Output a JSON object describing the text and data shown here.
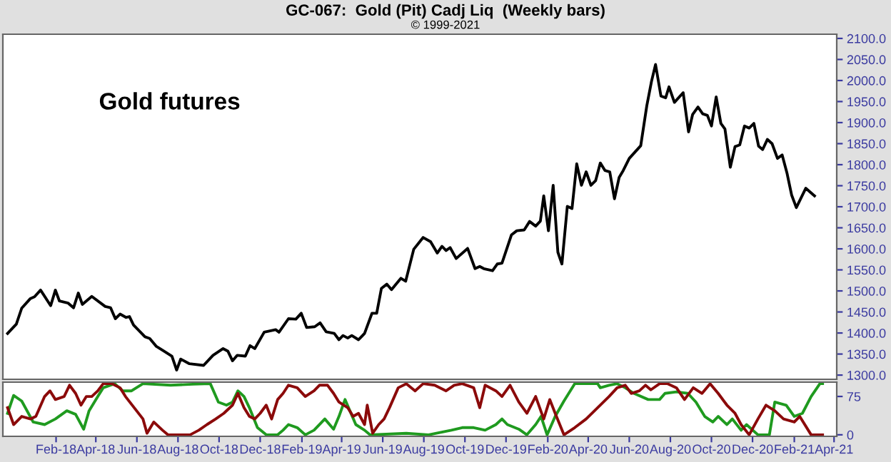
{
  "chart_data": [
    {
      "type": "line",
      "title": "GC-067:  Gold (Pit) Cadj Liq  (Weekly bars)",
      "annotations": [
        "© 1999-2021",
        "Gold futures"
      ],
      "tick_labels": "y",
      "marker": "none",
      "line_style": "solid",
      "xlim": [
        "2017-11-14",
        "2021-04-05"
      ],
      "ylim": [
        1290,
        2110
      ],
      "yticks": [
        {
          "value": 1300,
          "label": "1300.0"
        },
        {
          "value": 1350,
          "label": "1350.0"
        },
        {
          "value": 1400,
          "label": "1400.0"
        },
        {
          "value": 1450,
          "label": "1450.0"
        },
        {
          "value": 1500,
          "label": "1500.0"
        },
        {
          "value": 1550,
          "label": "1550.0"
        },
        {
          "value": 1600,
          "label": "1600.0"
        },
        {
          "value": 1650,
          "label": "1650.0"
        },
        {
          "value": 1700,
          "label": "1700.0"
        },
        {
          "value": 1750,
          "label": "1750.0"
        },
        {
          "value": 1800,
          "label": "1800.0"
        },
        {
          "value": 1850,
          "label": "1850.0"
        },
        {
          "value": 1900,
          "label": "1900.0"
        },
        {
          "value": 1950,
          "label": "1950.0"
        },
        {
          "value": 2000,
          "label": "2000.0"
        },
        {
          "value": 2050,
          "label": "2050.0"
        },
        {
          "value": 2100,
          "label": "2100.0"
        }
      ],
      "series": [
        {
          "color": "#000000",
          "x": [
            "2017-11-21",
            "2017-12-04",
            "2017-12-12",
            "2017-12-25",
            "2017-12-31",
            "2018-01-09",
            "2018-01-24",
            "2018-01-31",
            "2018-02-06",
            "2018-02-19",
            "2018-02-27",
            "2018-03-06",
            "2018-03-12",
            "2018-03-26",
            "2018-04-15",
            "2018-04-23",
            "2018-04-30",
            "2018-05-07",
            "2018-05-16",
            "2018-05-21",
            "2018-05-27",
            "2018-06-13",
            "2018-06-20",
            "2018-06-30",
            "2018-07-11",
            "2018-07-23",
            "2018-07-30",
            "2018-08-05",
            "2018-08-18",
            "2018-09-08",
            "2018-09-22",
            "2018-10-07",
            "2018-10-14",
            "2018-10-21",
            "2018-10-28",
            "2018-11-09",
            "2018-11-16",
            "2018-11-23",
            "2018-12-07",
            "2018-12-24",
            "2018-12-29",
            "2019-01-12",
            "2019-01-23",
            "2019-01-31",
            "2019-02-08",
            "2019-02-20",
            "2019-02-28",
            "2019-03-09",
            "2019-03-21",
            "2019-03-28",
            "2019-04-03",
            "2019-04-10",
            "2019-04-16",
            "2019-04-26",
            "2019-05-05",
            "2019-05-16",
            "2019-05-23",
            "2019-05-30",
            "2019-06-07",
            "2019-06-14",
            "2019-06-28",
            "2019-07-05",
            "2019-07-17",
            "2019-07-31",
            "2019-08-11",
            "2019-08-21",
            "2019-08-28",
            "2019-09-03",
            "2019-09-09",
            "2019-09-18",
            "2019-10-05",
            "2019-10-16",
            "2019-10-23",
            "2019-10-29",
            "2019-11-11",
            "2019-11-18",
            "2019-11-25",
            "2019-12-09",
            "2019-12-17",
            "2019-12-28",
            "2020-01-05",
            "2020-01-14",
            "2020-01-21",
            "2020-01-26",
            "2020-02-02",
            "2020-02-09",
            "2020-02-16",
            "2020-02-22",
            "2020-03-01",
            "2020-03-08",
            "2020-03-15",
            "2020-03-22",
            "2020-03-29",
            "2020-04-05",
            "2020-04-12",
            "2020-04-19",
            "2020-04-26",
            "2020-05-03",
            "2020-05-10",
            "2020-05-17",
            "2020-05-23",
            "2020-06-01",
            "2020-06-18",
            "2020-06-27",
            "2020-07-04",
            "2020-07-10",
            "2020-07-18",
            "2020-07-25",
            "2020-07-30",
            "2020-08-07",
            "2020-08-20",
            "2020-08-28",
            "2020-09-03",
            "2020-09-11",
            "2020-09-18",
            "2020-09-25",
            "2020-10-01",
            "2020-10-08",
            "2020-10-15",
            "2020-10-21",
            "2020-10-29",
            "2020-11-05",
            "2020-11-12",
            "2020-11-19",
            "2020-11-26",
            "2020-12-03",
            "2020-12-10",
            "2020-12-16",
            "2020-12-23",
            "2020-12-30",
            "2021-01-07",
            "2021-01-14",
            "2021-01-21",
            "2021-01-28",
            "2021-02-04",
            "2021-02-18",
            "2021-03-03"
          ],
          "values": [
            1399,
            1421,
            1459,
            1482,
            1486,
            1502,
            1465,
            1502,
            1476,
            1471,
            1460,
            1495,
            1468,
            1487,
            1463,
            1460,
            1434,
            1445,
            1437,
            1439,
            1419,
            1391,
            1387,
            1368,
            1357,
            1345,
            1312,
            1338,
            1327,
            1323,
            1347,
            1363,
            1357,
            1334,
            1347,
            1345,
            1370,
            1363,
            1402,
            1408,
            1402,
            1434,
            1433,
            1447,
            1413,
            1415,
            1424,
            1403,
            1399,
            1384,
            1394,
            1388,
            1394,
            1384,
            1399,
            1447,
            1447,
            1506,
            1516,
            1503,
            1530,
            1523,
            1599,
            1627,
            1617,
            1590,
            1606,
            1596,
            1603,
            1577,
            1601,
            1553,
            1558,
            1553,
            1548,
            1564,
            1566,
            1633,
            1643,
            1645,
            1665,
            1654,
            1666,
            1726,
            1643,
            1751,
            1592,
            1564,
            1701,
            1696,
            1802,
            1751,
            1783,
            1751,
            1762,
            1804,
            1786,
            1783,
            1719,
            1770,
            1786,
            1815,
            1845,
            1940,
            1998,
            2038,
            1963,
            1959,
            1985,
            1948,
            1971,
            1878,
            1919,
            1937,
            1921,
            1917,
            1892,
            1961,
            1898,
            1885,
            1794,
            1843,
            1847,
            1892,
            1887,
            1898,
            1844,
            1836,
            1860,
            1850,
            1815,
            1823,
            1781,
            1728,
            1698,
            1744,
            1726
          ]
        }
      ]
    },
    {
      "type": "line",
      "marker": "none",
      "line_style": "solid",
      "xlim": [
        "2017-11-14",
        "2021-04-05"
      ],
      "ylim": [
        -3,
        103
      ],
      "xticks": [
        {
          "value": "2018-02-01",
          "label": "Feb-18"
        },
        {
          "value": "2018-04-01",
          "label": "Apr-18"
        },
        {
          "value": "2018-06-01",
          "label": "Jun-18"
        },
        {
          "value": "2018-08-01",
          "label": "Aug-18"
        },
        {
          "value": "2018-10-01",
          "label": "Oct-18"
        },
        {
          "value": "2018-12-01",
          "label": "Dec-18"
        },
        {
          "value": "2019-02-01",
          "label": "Feb-19"
        },
        {
          "value": "2019-04-01",
          "label": "Apr-19"
        },
        {
          "value": "2019-06-01",
          "label": "Jun-19"
        },
        {
          "value": "2019-08-01",
          "label": "Aug-19"
        },
        {
          "value": "2019-10-01",
          "label": "Oct-19"
        },
        {
          "value": "2019-12-01",
          "label": "Dec-19"
        },
        {
          "value": "2020-02-01",
          "label": "Feb-20"
        },
        {
          "value": "2020-04-01",
          "label": "Apr-20"
        },
        {
          "value": "2020-06-01",
          "label": "Jun-20"
        },
        {
          "value": "2020-08-01",
          "label": "Aug-20"
        },
        {
          "value": "2020-10-01",
          "label": "Oct-20"
        },
        {
          "value": "2020-12-01",
          "label": "Dec-20"
        },
        {
          "value": "2021-02-01",
          "label": "Feb-21"
        },
        {
          "value": "2021-04-01",
          "label": "Apr-21"
        }
      ],
      "yticks": [
        0,
        75
      ],
      "series": [
        {
          "color": "#1f9a1f",
          "x": [
            "2017-11-21",
            "2017-11-30",
            "2017-12-12",
            "2017-12-29",
            "2018-01-15",
            "2018-01-31",
            "2018-02-17",
            "2018-03-02",
            "2018-03-14",
            "2018-03-22",
            "2018-04-04",
            "2018-04-12",
            "2018-04-29",
            "2018-05-11",
            "2018-05-24",
            "2018-06-10",
            "2018-07-21",
            "2018-08-23",
            "2018-09-18",
            "2018-09-30",
            "2018-10-12",
            "2018-10-21",
            "2018-10-29",
            "2018-11-07",
            "2018-11-15",
            "2018-11-27",
            "2018-12-10",
            "2018-12-27",
            "2019-01-04",
            "2019-01-12",
            "2019-01-25",
            "2019-02-06",
            "2019-02-19",
            "2019-03-07",
            "2019-03-20",
            "2019-03-28",
            "2019-04-06",
            "2019-04-22",
            "2019-05-05",
            "2019-05-13",
            "2019-07-06",
            "2019-08-08",
            "2019-09-11",
            "2019-09-27",
            "2019-10-14",
            "2019-10-31",
            "2019-11-16",
            "2019-11-25",
            "2019-12-03",
            "2019-12-20",
            "2020-01-01",
            "2020-01-14",
            "2020-01-22",
            "2020-01-31",
            "2020-02-12",
            "2020-02-25",
            "2020-03-12",
            "2020-04-15",
            "2020-04-19",
            "2020-05-02",
            "2020-05-14",
            "2020-05-26",
            "2020-06-08",
            "2020-06-29",
            "2020-07-16",
            "2020-07-24",
            "2020-08-10",
            "2020-08-27",
            "2020-09-08",
            "2020-09-21",
            "2020-10-03",
            "2020-10-11",
            "2020-10-24",
            "2020-11-01",
            "2020-11-14",
            "2020-11-22",
            "2020-12-09",
            "2020-12-26",
            "2021-01-03",
            "2021-01-20",
            "2021-02-01",
            "2021-02-13",
            "2021-02-26",
            "2021-03-11",
            "2021-03-15"
          ],
          "values": [
            42,
            77,
            66,
            25,
            20,
            31,
            47,
            40,
            11,
            47,
            75,
            92,
            100,
            86,
            86,
            100,
            97,
            99,
            100,
            64,
            58,
            64,
            86,
            75,
            53,
            14,
            0,
            0,
            9,
            20,
            14,
            0,
            9,
            31,
            11,
            36,
            69,
            20,
            9,
            0,
            3,
            0,
            9,
            14,
            14,
            9,
            20,
            31,
            20,
            11,
            0,
            20,
            36,
            0,
            36,
            66,
            100,
            100,
            92,
            97,
            100,
            92,
            81,
            69,
            69,
            81,
            84,
            81,
            64,
            36,
            25,
            36,
            20,
            31,
            9,
            20,
            0,
            0,
            64,
            58,
            36,
            42,
            75,
            100,
            100
          ]
        },
        {
          "color": "#8b0a0a",
          "x": [
            "2017-11-21",
            "2017-11-30",
            "2017-12-12",
            "2017-12-25",
            "2018-01-02",
            "2018-01-15",
            "2018-01-23",
            "2018-01-31",
            "2018-02-13",
            "2018-02-21",
            "2018-03-02",
            "2018-03-10",
            "2018-03-18",
            "2018-03-26",
            "2018-04-04",
            "2018-04-12",
            "2018-04-25",
            "2018-05-07",
            "2018-05-15",
            "2018-05-28",
            "2018-06-10",
            "2018-06-16",
            "2018-06-26",
            "2018-07-09",
            "2018-07-17",
            "2018-08-19",
            "2018-09-01",
            "2018-09-13",
            "2018-09-26",
            "2018-10-08",
            "2018-10-21",
            "2018-10-29",
            "2018-11-07",
            "2018-11-15",
            "2018-11-23",
            "2018-12-01",
            "2018-12-10",
            "2018-12-18",
            "2018-12-27",
            "2019-01-04",
            "2019-01-12",
            "2019-01-25",
            "2019-02-06",
            "2019-02-19",
            "2019-02-27",
            "2019-03-11",
            "2019-03-20",
            "2019-03-28",
            "2019-04-10",
            "2019-04-18",
            "2019-04-26",
            "2019-05-05",
            "2019-05-09",
            "2019-05-17",
            "2019-05-26",
            "2019-06-03",
            "2019-06-11",
            "2019-06-24",
            "2019-07-06",
            "2019-07-19",
            "2019-07-31",
            "2019-08-17",
            "2019-09-03",
            "2019-09-15",
            "2019-09-27",
            "2019-10-14",
            "2019-10-23",
            "2019-10-31",
            "2019-11-16",
            "2019-11-25",
            "2019-12-07",
            "2019-12-20",
            "2020-01-01",
            "2020-01-14",
            "2020-01-26",
            "2020-02-04",
            "2020-02-12",
            "2020-02-25",
            "2020-03-12",
            "2020-03-29",
            "2020-04-15",
            "2020-05-02",
            "2020-05-14",
            "2020-05-26",
            "2020-06-04",
            "2020-06-16",
            "2020-06-25",
            "2020-07-03",
            "2020-07-16",
            "2020-07-28",
            "2020-08-10",
            "2020-08-22",
            "2020-09-04",
            "2020-09-17",
            "2020-09-29",
            "2020-10-11",
            "2020-10-24",
            "2020-11-05",
            "2020-11-14",
            "2020-11-26",
            "2020-12-09",
            "2020-12-21",
            "2021-01-03",
            "2021-01-16",
            "2021-02-01",
            "2021-02-09",
            "2021-02-26",
            "2021-03-15"
          ],
          "values": [
            53,
            20,
            36,
            31,
            36,
            75,
            86,
            69,
            75,
            97,
            81,
            58,
            75,
            75,
            86,
            100,
            100,
            92,
            75,
            53,
            31,
            3,
            25,
            9,
            0,
            0,
            9,
            20,
            31,
            42,
            58,
            81,
            53,
            36,
            31,
            42,
            58,
            31,
            69,
            81,
            97,
            92,
            75,
            86,
            97,
            97,
            81,
            64,
            53,
            36,
            42,
            20,
            58,
            3,
            20,
            31,
            53,
            92,
            100,
            86,
            100,
            97,
            86,
            97,
            100,
            92,
            53,
            97,
            86,
            75,
            97,
            64,
            42,
            75,
            31,
            69,
            42,
            0,
            14,
            31,
            53,
            75,
            92,
            97,
            81,
            86,
            97,
            88,
            100,
            100,
            92,
            69,
            92,
            81,
            100,
            81,
            58,
            42,
            20,
            0,
            31,
            58,
            47,
            31,
            25,
            36,
            0,
            0
          ]
        }
      ]
    }
  ]
}
